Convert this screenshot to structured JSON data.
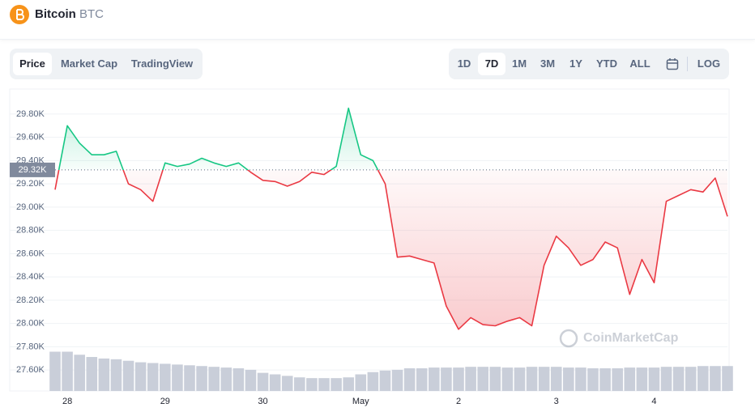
{
  "header": {
    "name": "Bitcoin",
    "symbol": "BTC"
  },
  "tabs": [
    "Price",
    "Market Cap",
    "TradingView"
  ],
  "ranges": [
    "1D",
    "7D",
    "1M",
    "3M",
    "1Y",
    "YTD",
    "ALL"
  ],
  "log_button": "LOG",
  "watermark": "CoinMarketCap",
  "chart_data": {
    "type": "line",
    "categories": [
      null,
      "28",
      null,
      null,
      null,
      null,
      null,
      null,
      null,
      "29",
      null,
      null,
      null,
      null,
      null,
      null,
      null,
      "30",
      null,
      null,
      null,
      null,
      null,
      null,
      null,
      "May",
      null,
      null,
      null,
      null,
      null,
      null,
      null,
      "2",
      null,
      null,
      null,
      null,
      null,
      null,
      null,
      "3",
      null,
      null,
      null,
      null,
      null,
      null,
      null,
      "4",
      null,
      null,
      null,
      null,
      null,
      null
    ],
    "series": [
      {
        "up_color": "#16c784",
        "down_color": "#ea3943",
        "values": [
          29150,
          29700,
          29550,
          29450,
          29450,
          29480,
          29200,
          29150,
          29050,
          29380,
          29350,
          29370,
          29420,
          29380,
          29350,
          29380,
          29300,
          29230,
          29220,
          29180,
          29220,
          29300,
          29280,
          29350,
          29850,
          29450,
          29400,
          29200,
          28570,
          28580,
          28550,
          28520,
          28150,
          27950,
          28050,
          27990,
          27980,
          28020,
          28050,
          27980,
          28500,
          28750,
          28650,
          28500,
          28550,
          28700,
          28650,
          28250,
          28550,
          28350,
          29050,
          29100,
          29150,
          29130,
          29250,
          28920
        ]
      },
      {
        "axis": "y2",
        "color": "#c9ced9",
        "values": [
          52,
          52,
          48,
          45,
          43,
          42,
          40,
          38,
          37,
          36,
          35,
          34,
          33,
          32,
          31,
          30,
          28,
          24,
          22,
          20,
          18,
          17,
          17,
          17,
          18,
          22,
          25,
          27,
          28,
          30,
          30,
          31,
          31,
          31,
          32,
          32,
          32,
          31,
          31,
          32,
          32,
          32,
          31,
          31,
          30,
          30,
          30,
          31,
          31,
          31,
          32,
          32,
          32,
          33,
          33,
          33
        ]
      }
    ],
    "reference_value": 29320,
    "reference_label": "29.32K",
    "ylim": [
      27420,
      30015
    ],
    "yticks": [
      {
        "value": 27600,
        "label": "27.60K"
      },
      {
        "value": 27800,
        "label": "27.80K"
      },
      {
        "value": 28000,
        "label": "28.00K"
      },
      {
        "value": 28200,
        "label": "28.20K"
      },
      {
        "value": 28400,
        "label": "28.40K"
      },
      {
        "value": 28600,
        "label": "28.60K"
      },
      {
        "value": 28800,
        "label": "28.80K"
      },
      {
        "value": 29000,
        "label": "29.00K"
      },
      {
        "value": 29200,
        "label": "29.20K"
      },
      {
        "value": 29400,
        "label": "29.40K"
      },
      {
        "value": 29600,
        "label": "29.60K"
      },
      {
        "value": 29800,
        "label": "29.80K"
      }
    ],
    "y2lim": [
      0,
      400
    ],
    "grid": true
  }
}
